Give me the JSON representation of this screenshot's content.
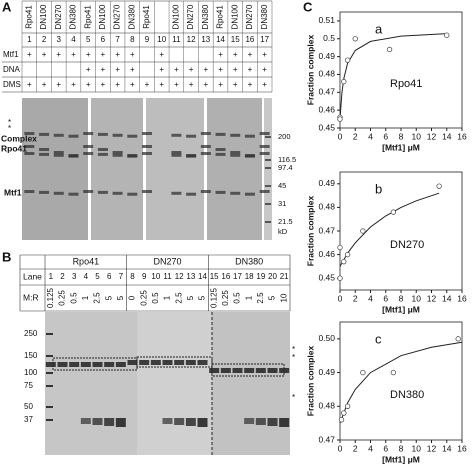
{
  "panel_a": {
    "label": "A",
    "columns": [
      "Rpo41",
      "DN100",
      "DN270",
      "DN380",
      "Rpo41",
      "DN100",
      "DN270",
      "DN380",
      "Rpo41",
      null,
      "DN100",
      "DN270",
      "DN380",
      "Rpo41",
      "DN100",
      "DN270",
      "DN380"
    ],
    "lanes": [
      1,
      2,
      3,
      4,
      5,
      6,
      7,
      8,
      9,
      10,
      11,
      12,
      13,
      14,
      15,
      16,
      17
    ],
    "rows": [
      {
        "label": "Mtf1",
        "marks": [
          "+",
          "+",
          "+",
          "+",
          "+",
          "+",
          "+",
          "+",
          null,
          "+",
          null,
          null,
          null,
          "+",
          "+",
          "+",
          "+"
        ]
      },
      {
        "label": "DNA",
        "marks": [
          null,
          null,
          null,
          null,
          "+",
          "+",
          "+",
          "+",
          null,
          "+",
          "+",
          "+",
          "+",
          "+",
          "+",
          "+",
          "+"
        ]
      },
      {
        "label": "DMS",
        "marks": [
          "+",
          "+",
          "+",
          "+",
          "+",
          "+",
          "+",
          "+",
          "+",
          "+",
          "+",
          "+",
          "+",
          "+",
          "+",
          "+",
          "+"
        ]
      }
    ],
    "gel_labels": {
      "complex": "Complex",
      "rpo41": "Rpo41",
      "mtf1": "Mtf1",
      "stars": [
        "*",
        "*"
      ]
    },
    "markers": [
      "200",
      "116.5",
      "97.4",
      "45",
      "31",
      "21.5"
    ],
    "unit": "kD"
  },
  "panel_b": {
    "label": "B",
    "groups": [
      "Rpo41",
      "DN270",
      "DN380"
    ],
    "lane_label": "Lane",
    "lanes": [
      1,
      2,
      3,
      4,
      5,
      6,
      7,
      8,
      9,
      10,
      11,
      12,
      13,
      14,
      15,
      16,
      17,
      18,
      19,
      20,
      21
    ],
    "ratio_label": "M:R",
    "ratios": [
      "0.125",
      "0.25",
      "0.5",
      "1",
      "2.5",
      "5",
      "5",
      "0",
      "0.25",
      "0.5",
      "1",
      "2.5",
      "5",
      "5",
      "0.125",
      "0.25",
      "0.5",
      "1",
      "2.5",
      "5",
      "10"
    ],
    "markers": [
      "250",
      "150",
      "100",
      "75",
      "50",
      "37"
    ],
    "stars": [
      "*",
      "*",
      "*"
    ]
  },
  "panel_c": {
    "label": "C",
    "plots": [
      {
        "tag": "a",
        "name": "Rpo41",
        "xlabel": "[Mtf1] μM",
        "ylabel": "Fraction complex",
        "xlim": [
          0,
          16
        ],
        "xticks": [
          0,
          2,
          4,
          6,
          8,
          10,
          12,
          14,
          16
        ],
        "ylim": [
          0.45,
          0.515
        ],
        "yticks": [
          0.45,
          0.46,
          0.47,
          0.48,
          0.49,
          0.5,
          0.51
        ],
        "points": {
          "x": [
            0,
            0,
            0.5,
            1,
            2,
            6.5,
            14
          ],
          "y": [
            0.456,
            0.455,
            0.476,
            0.488,
            0.5,
            0.494,
            0.502
          ]
        },
        "fit": {
          "x": [
            0,
            0.25,
            0.5,
            1,
            2,
            4,
            8,
            14
          ],
          "y": [
            0.455,
            0.4697,
            0.4777,
            0.4863,
            0.4935,
            0.4985,
            0.5015,
            0.5029
          ]
        }
      },
      {
        "tag": "b",
        "name": "DN270",
        "xlabel": "[Mtf1] μM",
        "ylabel": "Fraction complex",
        "xlim": [
          0,
          16
        ],
        "xticks": [
          0,
          2,
          4,
          6,
          8,
          10,
          12,
          14,
          16
        ],
        "ylim": [
          0.445,
          0.495
        ],
        "yticks": [
          0.45,
          0.46,
          0.47,
          0.48,
          0.49
        ],
        "points": {
          "x": [
            0,
            0,
            0.5,
            1,
            3,
            7,
            13
          ],
          "y": [
            0.463,
            0.45,
            0.457,
            0.46,
            0.47,
            0.478,
            0.489
          ]
        },
        "fit": {
          "x": [
            0,
            1,
            2,
            4,
            6,
            8,
            10,
            13
          ],
          "y": [
            0.455,
            0.4606,
            0.465,
            0.4717,
            0.4764,
            0.48,
            0.4828,
            0.486
          ]
        }
      },
      {
        "tag": "c",
        "name": "DN380",
        "xlabel": "[Mtf1] μM",
        "ylabel": "Fraction complex",
        "xlim": [
          0,
          16
        ],
        "xticks": [
          0,
          2,
          4,
          6,
          8,
          10,
          12,
          14,
          16
        ],
        "ylim": [
          0.47,
          0.505
        ],
        "yticks": [
          0.47,
          0.48,
          0.49,
          {
            "value": 0.5,
            "label": "0.50"
          }
        ],
        "points": {
          "x": [
            0.2,
            0.5,
            1,
            3,
            7,
            15.5
          ],
          "y": [
            0.476,
            0.478,
            0.48,
            0.49,
            0.49,
            0.5
          ]
        },
        "fit": {
          "x": [
            0,
            1,
            2,
            4,
            8,
            12,
            16
          ],
          "y": [
            0.475,
            0.481,
            0.485,
            0.49,
            0.495,
            0.4975,
            0.499
          ]
        }
      }
    ]
  }
}
